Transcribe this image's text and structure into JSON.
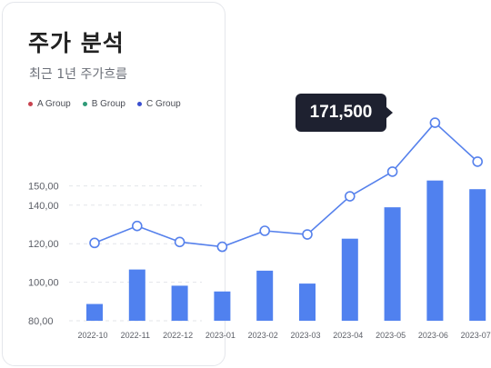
{
  "header": {
    "title": "주가 분석",
    "subtitle": "최근 1년 주가흐름"
  },
  "legend": [
    {
      "label": "A Group",
      "color": "#c8434f"
    },
    {
      "label": "B Group",
      "color": "#2f9a78"
    },
    {
      "label": "C Group",
      "color": "#3a4fcf"
    }
  ],
  "tooltip": {
    "value": "171,500"
  },
  "chart_data": {
    "type": "bar",
    "categories": [
      "2022-10",
      "2022-11",
      "2022-12",
      "2023-01",
      "2023-02",
      "2023-03",
      "2023-04",
      "2023-05",
      "2023-06",
      "2023-07"
    ],
    "ylim": [
      80,
      160
    ],
    "yticks": [
      80,
      100,
      120,
      140,
      150
    ],
    "ytick_labels": [
      "80,00",
      "100,00",
      "120,00",
      "140,00",
      "150,00"
    ],
    "grid": true,
    "bar_color": "#5081ef",
    "line_color": "#5681ec",
    "bars": [
      88.7,
      106.6,
      98.2,
      95.2,
      106.0,
      99.3,
      122.6,
      138.9,
      152.8,
      148.3
    ],
    "line": [
      120.4,
      129.2,
      120.9,
      118.4,
      126.7,
      124.8,
      144.6,
      157.4,
      182.8,
      162.6
    ]
  }
}
